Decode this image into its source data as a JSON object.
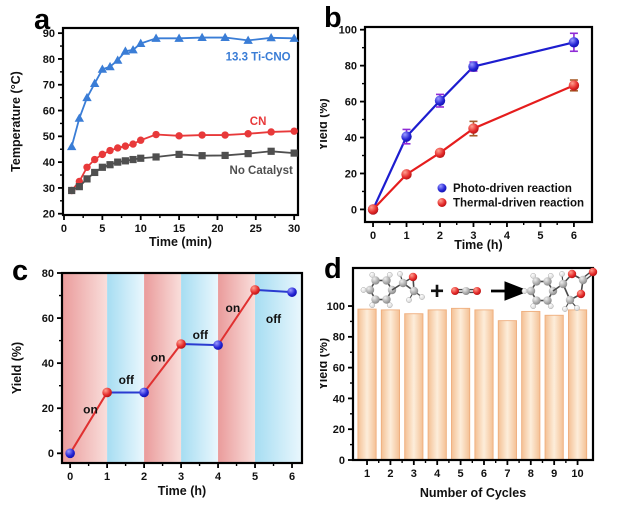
{
  "panel_labels": {
    "a": "a",
    "b": "b",
    "c": "c",
    "d": "d"
  },
  "chart_data": [
    {
      "panel": "a",
      "type": "line",
      "xlabel": "Time (min)",
      "ylabel": "Temperature (°C)",
      "xlim": [
        -0.13,
        30.5
      ],
      "ylim": [
        19.5,
        92
      ],
      "xticks": [
        0,
        5,
        10,
        15,
        20,
        25,
        30
      ],
      "yticks": [
        20,
        30,
        40,
        50,
        60,
        70,
        80,
        90
      ],
      "x_minor_step": 2.5,
      "y_minor_step": 5,
      "x": [
        1,
        2,
        3,
        4,
        5,
        6,
        7,
        8,
        9,
        10,
        12,
        15,
        18,
        21,
        24,
        27,
        30
      ],
      "series": [
        {
          "name": "13.3 Ti-CNO",
          "color": "#3a7dd6",
          "marker": "triangle",
          "values": [
            46,
            57,
            65,
            70.5,
            76,
            77,
            79.5,
            83,
            83.5,
            86,
            88,
            88,
            88.3,
            88.3,
            87.2,
            88.2,
            88
          ],
          "label_at": [
            25.3,
            81
          ]
        },
        {
          "name": "CN",
          "color": "#e8393a",
          "marker": "circle",
          "values": [
            29,
            32.5,
            38,
            41,
            43,
            44.5,
            45.5,
            46.2,
            47,
            48.5,
            50.7,
            50.2,
            50.5,
            50.5,
            51,
            51.7,
            52
          ],
          "label_at": [
            25.3,
            56
          ]
        },
        {
          "name": "No Catalyst",
          "color": "#4f4f4f",
          "marker": "square",
          "values": [
            29,
            30.5,
            33.5,
            36,
            38,
            39,
            40,
            40.5,
            41,
            41.5,
            42,
            43,
            42.5,
            42.6,
            43.3,
            44.2,
            43.5
          ],
          "label_at": [
            25.7,
            37
          ]
        }
      ]
    },
    {
      "panel": "b",
      "type": "line_err",
      "xlabel": "Time (h)",
      "ylabel": "Yield (%)",
      "xlim": [
        -0.24,
        6.54
      ],
      "ylim": [
        -7,
        101.5
      ],
      "xticks": [
        0,
        1,
        2,
        3,
        4,
        5,
        6
      ],
      "yticks": [
        0,
        20,
        40,
        60,
        80,
        100
      ],
      "x_minor_step": 0.5,
      "y_minor_step": 10,
      "x": [
        0,
        1,
        2,
        3,
        6
      ],
      "series": [
        {
          "name": "Photo-driven reaction",
          "color": "#1d1dcf",
          "err_color": "#8f2bd6",
          "ball": "blue",
          "values": [
            0,
            40.5,
            60.5,
            79.5,
            93
          ],
          "errors": [
            1.5,
            4,
            3.5,
            2.5,
            5
          ]
        },
        {
          "name": "Thermal-driven reaction",
          "color": "#e51d1d",
          "err_color": "#a65c2a",
          "ball": "red",
          "values": [
            0,
            19.5,
            31.5,
            45,
            69
          ],
          "errors": [
            1,
            1.5,
            1.5,
            4,
            3
          ]
        }
      ],
      "legend": {
        "labels": [
          "Photo-driven reaction",
          "Thermal-driven reaction"
        ],
        "colors": [
          "blue",
          "red"
        ]
      }
    },
    {
      "panel": "c",
      "type": "cycles",
      "xlabel": "Time (h)",
      "ylabel": "Yield (%)",
      "xlim": [
        -0.22,
        6.27
      ],
      "ylim": [
        -4.3,
        80
      ],
      "xticks": [
        0,
        1,
        2,
        3,
        4,
        5,
        6
      ],
      "yticks": [
        0,
        20,
        40,
        60,
        80
      ],
      "x_minor_step": 0.5,
      "y_minor_step": 10,
      "x": [
        0,
        1,
        2,
        3,
        4,
        5,
        6
      ],
      "values": [
        0,
        27,
        27,
        48.5,
        48,
        72.5,
        71.5
      ],
      "on_color": "#e03030",
      "off_color": "#2a3bd0",
      "band_red": [
        "#ea9b9b",
        "#f9dedb"
      ],
      "band_blue": [
        "#a6ddf2",
        "#eaf7fd"
      ],
      "annotations": [
        {
          "text": "on",
          "at": [
            0.55,
            19.5
          ]
        },
        {
          "text": "off",
          "at": [
            1.52,
            32.5
          ]
        },
        {
          "text": "on",
          "at": [
            2.38,
            42.5
          ]
        },
        {
          "text": "off",
          "at": [
            3.52,
            52.5
          ]
        },
        {
          "text": "on",
          "at": [
            4.4,
            64.5
          ]
        },
        {
          "text": "off",
          "at": [
            5.5,
            59.5
          ]
        }
      ]
    },
    {
      "panel": "d",
      "type": "bar",
      "xlabel": "Number of Cycles",
      "ylabel": "Yield (%)",
      "xlim": [
        0.4,
        10.66
      ],
      "ylim": [
        0,
        124.7
      ],
      "xticks": [
        1,
        2,
        3,
        4,
        5,
        6,
        7,
        8,
        9,
        10
      ],
      "yticks": [
        0,
        20,
        40,
        60,
        80,
        100
      ],
      "x_minor_step": 0.5,
      "y_minor_step": 10,
      "categories": [
        1,
        2,
        3,
        4,
        5,
        6,
        7,
        8,
        9,
        10
      ],
      "values": [
        98,
        97.5,
        95,
        97.5,
        98.5,
        97.5,
        90.5,
        96.5,
        94,
        97.5
      ],
      "bar_width": 0.78,
      "bar_edge": "#efae7d",
      "bar_gradient": [
        "#f4c094",
        "#fdedda"
      ],
      "reaction_scheme": {
        "plus": "+",
        "molecules": [
          "styrene-oxide",
          "carbon-dioxide",
          "styrene-carbonate"
        ]
      }
    }
  ]
}
